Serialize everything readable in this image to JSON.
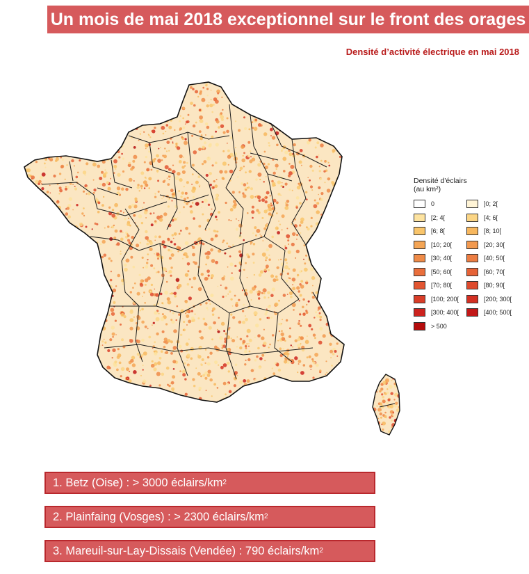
{
  "title": "Un mois de mai 2018 exceptionnel sur le front des orages",
  "subtitle": "Densité d’activité électrique en mai 2018",
  "legend": {
    "title_line1": "Densité d'éclairs",
    "title_line2": "(au km²)",
    "items": [
      {
        "label": "0",
        "color": "#ffffff"
      },
      {
        "label": "]0; 2[",
        "color": "#fff4d6"
      },
      {
        "label": "[2; 4[",
        "color": "#fde3a0"
      },
      {
        "label": "[4; 6[",
        "color": "#fbd585"
      },
      {
        "label": "[6; 8[",
        "color": "#f9c56b"
      },
      {
        "label": "[8; 10[",
        "color": "#f7b75e"
      },
      {
        "label": "[10; 20[",
        "color": "#f4a555"
      },
      {
        "label": "[20; 30[",
        "color": "#f2994f"
      },
      {
        "label": "[30; 40[",
        "color": "#ef8b48"
      },
      {
        "label": "[40; 50[",
        "color": "#ec7d42"
      },
      {
        "label": "[50; 60[",
        "color": "#e96f3c"
      },
      {
        "label": "[60; 70[",
        "color": "#e66337"
      },
      {
        "label": "[70; 80[",
        "color": "#e25632"
      },
      {
        "label": "[80; 90[",
        "color": "#de4a2d"
      },
      {
        "label": "[100; 200[",
        "color": "#d93d28"
      },
      {
        "label": "[200; 300[",
        "color": "#d33023"
      },
      {
        "label": "[300; 400[",
        "color": "#cc231e"
      },
      {
        "label": "[400; 500[",
        "color": "#c21818"
      },
      {
        "label": "> 500",
        "color": "#b50d0d"
      }
    ]
  },
  "ranking": [
    {
      "text": "1. Betz (Oise) : > 3000 éclairs/km",
      "sup": "2"
    },
    {
      "text": "2. Plainfaing (Vosges) : > 2300 éclairs/km",
      "sup": "2"
    },
    {
      "text": "3. Mareuil-sur-Lay-Dissais (Vendée) : 790 éclairs/km",
      "sup": "2"
    }
  ],
  "colors": {
    "banner": "#d65a5c",
    "banner_border": "#b9282d",
    "subtitle": "#b91c1c",
    "map_base": "#fbe6c2"
  }
}
